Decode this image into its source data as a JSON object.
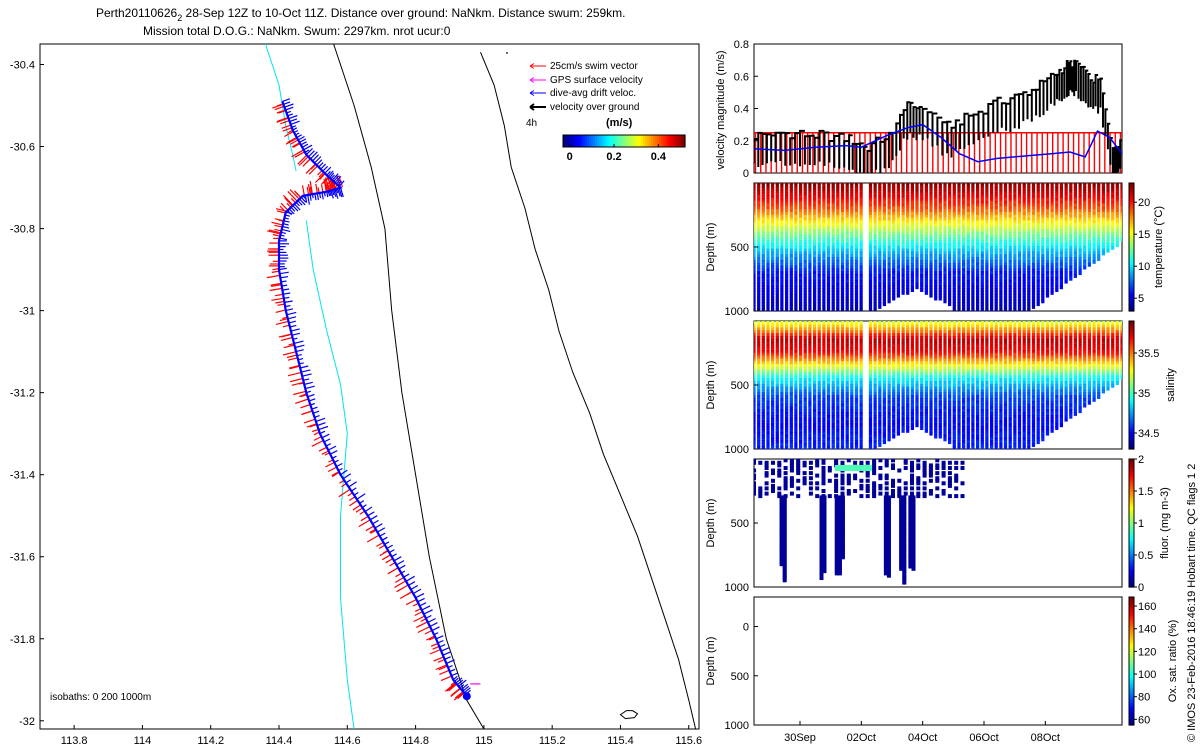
{
  "title": {
    "line1": "Perth20110626",
    "line1_sub": "2",
    "line1_rest": " 28-Sep 12Z to 10-Oct 11Z. Distance over ground: NaNkm. Distance swum: 259km.",
    "line2": "Mission total D.O.G.: NaNkm. Swum: 2297km. nrot ucur:0"
  },
  "colors": {
    "swim": "#ff0000",
    "gps": "#ff00ff",
    "drift": "#0000ff",
    "ground": "#000000",
    "isobath": "#00e5ee"
  },
  "chart_data": [
    {
      "type": "map",
      "xlim": [
        113.7,
        115.63
      ],
      "ylim": [
        -32.02,
        -30.35
      ],
      "xticks": [
        113.8,
        114,
        114.2,
        114.4,
        114.6,
        114.8,
        115,
        115.2,
        115.4,
        115.6
      ],
      "xtick_labels": [
        "113.8",
        "114",
        "114.2",
        "114.4",
        "114.6",
        "114.8",
        "115",
        "115.2",
        "115.4",
        "115.6"
      ],
      "yticks": [
        -30.4,
        -30.6,
        -30.8,
        -31,
        -31.2,
        -31.4,
        -31.6,
        -31.8,
        -32
      ],
      "ytick_labels": [
        "-30.4",
        "-30.6",
        "-30.8",
        "-31",
        "-31.2",
        "-31.4",
        "-31.6",
        "-31.8",
        "-32"
      ],
      "legend": [
        {
          "label": "25cm/s swim vector",
          "color": "#ff0000"
        },
        {
          "label": "GPS surface velocity",
          "color": "#ff00ff"
        },
        {
          "label": "dive-avg drift veloc.",
          "color": "#0000ff"
        },
        {
          "label": "velocity over ground",
          "color": "#000000"
        }
      ],
      "colorbar_label": "(m/s)",
      "colorbar_ticks": [
        "0",
        "0.2",
        "0.4"
      ],
      "colorbar_range": [
        -0.03,
        0.52
      ],
      "time_label": "4h",
      "isobath_label": "isobaths: 0   200  1000m",
      "track": [
        [
          114.41,
          -30.49
        ],
        [
          114.44,
          -30.56
        ],
        [
          114.48,
          -30.62
        ],
        [
          114.54,
          -30.67
        ],
        [
          114.58,
          -30.7
        ],
        [
          114.54,
          -30.71
        ],
        [
          114.47,
          -30.72
        ],
        [
          114.42,
          -30.76
        ],
        [
          114.4,
          -30.83
        ],
        [
          114.4,
          -30.9
        ],
        [
          114.42,
          -31.0
        ],
        [
          114.45,
          -31.1
        ],
        [
          114.48,
          -31.2
        ],
        [
          114.52,
          -31.3
        ],
        [
          114.58,
          -31.4
        ],
        [
          114.66,
          -31.5
        ],
        [
          114.73,
          -31.6
        ],
        [
          114.8,
          -31.7
        ],
        [
          114.86,
          -31.8
        ],
        [
          114.91,
          -31.9
        ],
        [
          114.95,
          -31.94
        ]
      ],
      "coastline": [
        [
          114.99,
          -30.37
        ],
        [
          115.03,
          -30.45
        ],
        [
          115.06,
          -30.55
        ],
        [
          115.08,
          -30.65
        ],
        [
          115.12,
          -30.75
        ],
        [
          115.15,
          -30.85
        ],
        [
          115.19,
          -30.95
        ],
        [
          115.22,
          -31.05
        ],
        [
          115.26,
          -31.15
        ],
        [
          115.31,
          -31.25
        ],
        [
          115.35,
          -31.35
        ],
        [
          115.4,
          -31.45
        ],
        [
          115.45,
          -31.55
        ],
        [
          115.49,
          -31.65
        ],
        [
          115.53,
          -31.75
        ],
        [
          115.57,
          -31.85
        ],
        [
          115.6,
          -31.95
        ],
        [
          115.62,
          -32.02
        ]
      ],
      "isobath_1000m": [
        [
          114.36,
          -30.35
        ],
        [
          114.4,
          -30.45
        ],
        [
          114.42,
          -30.55
        ],
        [
          114.44,
          -30.62
        ],
        [
          114.45,
          -30.66
        ]
      ],
      "isobath_200m": [
        [
          114.56,
          -30.35
        ],
        [
          114.62,
          -30.5
        ],
        [
          114.67,
          -30.65
        ],
        [
          114.71,
          -30.8
        ],
        [
          114.73,
          -31.0
        ],
        [
          114.76,
          -31.2
        ],
        [
          114.8,
          -31.4
        ],
        [
          114.84,
          -31.6
        ],
        [
          114.89,
          -31.8
        ],
        [
          114.95,
          -31.95
        ],
        [
          115.0,
          -32.02
        ]
      ],
      "isobath_1000m_south": [
        [
          114.48,
          -30.78
        ],
        [
          114.5,
          -30.9
        ],
        [
          114.54,
          -31.05
        ],
        [
          114.58,
          -31.18
        ],
        [
          114.6,
          -31.3
        ],
        [
          114.58,
          -31.5
        ],
        [
          114.58,
          -31.7
        ],
        [
          114.6,
          -31.9
        ],
        [
          114.62,
          -32.02
        ]
      ]
    },
    {
      "type": "line",
      "ylabel": "velocity magnitude (m/s)",
      "ylim": [
        0,
        0.8
      ],
      "yticks": [
        0,
        0.2,
        0.4,
        0.6,
        0.8
      ],
      "ytick_labels": [
        "0",
        "0.2",
        "0.4",
        "0.6",
        "0.8"
      ],
      "xlim": [
        28.5,
        40.5
      ],
      "swim_level": 0.25,
      "drift_series": {
        "name": "dive-avg drift veloc.",
        "x": [
          28.5,
          29.5,
          30.5,
          31.5,
          32.0,
          32.8,
          33.5,
          34.0,
          34.6,
          35.2,
          35.8,
          36.4,
          37.0,
          37.6,
          38.2,
          38.8,
          39.3,
          39.7,
          40.1,
          40.5
        ],
        "values": [
          0.15,
          0.14,
          0.16,
          0.17,
          0.16,
          0.23,
          0.28,
          0.3,
          0.22,
          0.12,
          0.07,
          0.09,
          0.1,
          0.11,
          0.12,
          0.13,
          0.1,
          0.26,
          0.22,
          0.12
        ]
      },
      "ground_series": {
        "name": "velocity over ground",
        "x": [
          28.5,
          29.2,
          30.0,
          30.8,
          31.6,
          32.2,
          32.9,
          33.5,
          34.0,
          34.8,
          35.5,
          36.3,
          37.0,
          37.7,
          38.3,
          38.7,
          39.0,
          39.4,
          39.8,
          40.2,
          40.5
        ],
        "values": [
          0.12,
          0.14,
          0.13,
          0.12,
          0.1,
          0.05,
          0.13,
          0.3,
          0.3,
          0.18,
          0.24,
          0.32,
          0.36,
          0.42,
          0.5,
          0.56,
          0.58,
          0.48,
          0.46,
          0.05,
          0.1
        ]
      }
    },
    {
      "type": "scatter-depth",
      "variable": "temperature",
      "ylabel": "Depth (m)",
      "clabel": "temperature (°C)",
      "yticks": [
        500,
        1000
      ],
      "ytick_labels": [
        "500",
        "1000"
      ],
      "ylim": [
        0,
        1000
      ],
      "cticks": [
        "5",
        "10",
        "15",
        "20"
      ],
      "clim": [
        3,
        23
      ],
      "profiles": {
        "x_start": 28.5,
        "x_end": 40.5,
        "count": 80,
        "gap": [
          32.05,
          32.25
        ]
      },
      "color_by_depth": [
        [
          0,
          23
        ],
        [
          100,
          21
        ],
        [
          200,
          19
        ],
        [
          300,
          16
        ],
        [
          400,
          13
        ],
        [
          550,
          9
        ],
        [
          700,
          6
        ],
        [
          1000,
          4
        ]
      ]
    },
    {
      "type": "scatter-depth",
      "variable": "salinity",
      "ylabel": "Depth (m)",
      "clabel": "salinity",
      "yticks": [
        500,
        1000
      ],
      "ytick_labels": [
        "500",
        "1000"
      ],
      "ylim": [
        0,
        1000
      ],
      "cticks": [
        "34.5",
        "35",
        "35.5"
      ],
      "clim": [
        34.3,
        35.9
      ],
      "profiles": {
        "x_start": 28.5,
        "x_end": 40.5,
        "count": 80,
        "gap": [
          32.05,
          32.25
        ]
      },
      "color_by_depth": [
        [
          0,
          35.2
        ],
        [
          80,
          35.5
        ],
        [
          150,
          35.8
        ],
        [
          250,
          35.7
        ],
        [
          350,
          35.3
        ],
        [
          450,
          34.9
        ],
        [
          600,
          34.6
        ],
        [
          800,
          34.5
        ],
        [
          1000,
          34.55
        ]
      ]
    },
    {
      "type": "scatter-depth",
      "variable": "fluorescence",
      "ylabel": "Depth (m)",
      "clabel": "fluor. (mg m-3)",
      "yticks": [
        500,
        1000
      ],
      "ytick_labels": [
        "500",
        "1000"
      ],
      "ylim": [
        0,
        1000
      ],
      "cticks": [
        "0",
        "0.5",
        "1",
        "1.5",
        "2"
      ],
      "clim": [
        0,
        2
      ],
      "profiles": {
        "x_start": 28.5,
        "x_end": 35.3,
        "count": 34
      },
      "deep_casts": [
        29.4,
        29.5,
        30.7,
        30.8,
        31.2,
        31.3,
        31.4,
        32.8,
        32.9,
        33.3,
        33.4,
        33.6,
        33.7
      ],
      "highlight": {
        "x_start": 31.2,
        "x_end": 32.3,
        "value": 1.0
      }
    },
    {
      "type": "scatter-depth",
      "variable": "oxygen",
      "ylabel": "Depth (m)",
      "clabel": "Ox. sat. ratio (%)",
      "yticks": [
        0,
        500,
        1000
      ],
      "ytick_labels": [
        "0",
        "500",
        "1000"
      ],
      "ylim": [
        -300,
        1000
      ],
      "cticks": [
        "60",
        "80",
        "100",
        "120",
        "140",
        "160"
      ],
      "clim": [
        55,
        168
      ],
      "xticks": [
        30,
        32,
        34,
        36,
        38
      ],
      "xtick_labels": [
        "30Sep",
        "02Oct",
        "04Oct",
        "06Oct",
        "08Oct"
      ],
      "xlim": [
        28.5,
        40.5
      ]
    }
  ],
  "footer": "© IMOS 23-Feb-2016 18:46:19 Hobart time. QC flags 1  2"
}
